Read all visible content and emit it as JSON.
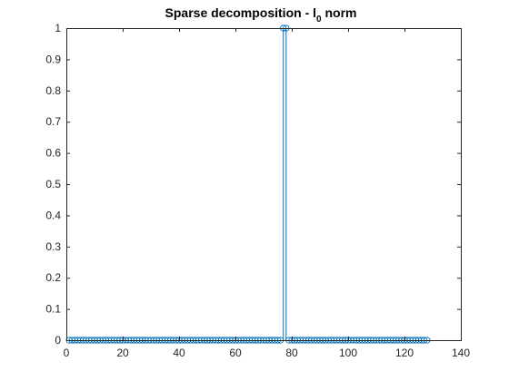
{
  "chart_data": {
    "type": "stem",
    "title_main": "Sparse decomposition - l",
    "title_subscript": "0",
    "title_suffix": " norm",
    "xlim": [
      0,
      140
    ],
    "ylim": [
      0,
      1
    ],
    "x_ticks": [
      0,
      20,
      40,
      60,
      80,
      100,
      120,
      140
    ],
    "x_tick_labels": [
      "0",
      "20",
      "40",
      "60",
      "80",
      "100",
      "120",
      "140"
    ],
    "y_ticks": [
      0,
      0.1,
      0.2,
      0.3,
      0.4,
      0.5,
      0.6,
      0.7,
      0.8,
      0.9,
      1
    ],
    "y_tick_labels": [
      "0",
      "0.1",
      "0.2",
      "0.3",
      "0.4",
      "0.5",
      "0.6",
      "0.7",
      "0.8",
      "0.9",
      "1"
    ],
    "series": [
      {
        "x_start": 1,
        "x_end": 128,
        "values_default": 0,
        "nonzero": [
          {
            "x": 77,
            "y": 1
          },
          {
            "x": 78,
            "y": 1
          }
        ],
        "color": "#0072BD"
      }
    ],
    "grid": false,
    "box": true
  }
}
